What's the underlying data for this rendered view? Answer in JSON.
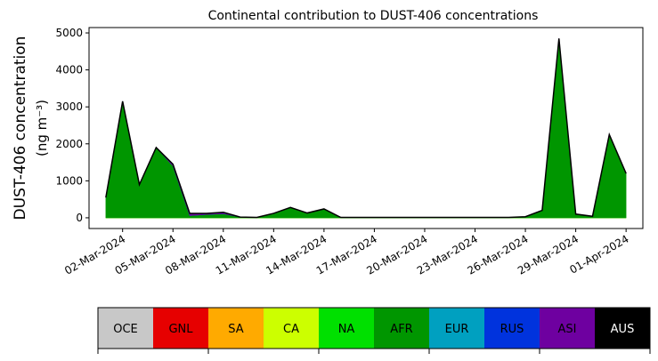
{
  "chart_data": {
    "type": "stacked-area",
    "title": "Continental contribution to DUST-406 concentrations",
    "ylabel": [
      "DUST-406 concentration",
      "(ng m⁻³)"
    ],
    "x": [
      "01-Mar-2024",
      "02-Mar-2024",
      "03-Mar-2024",
      "04-Mar-2024",
      "05-Mar-2024",
      "06-Mar-2024",
      "07-Mar-2024",
      "08-Mar-2024",
      "09-Mar-2024",
      "10-Mar-2024",
      "11-Mar-2024",
      "12-Mar-2024",
      "13-Mar-2024",
      "14-Mar-2024",
      "15-Mar-2024",
      "16-Mar-2024",
      "17-Mar-2024",
      "18-Mar-2024",
      "19-Mar-2024",
      "20-Mar-2024",
      "21-Mar-2024",
      "22-Mar-2024",
      "23-Mar-2024",
      "24-Mar-2024",
      "25-Mar-2024",
      "26-Mar-2024",
      "27-Mar-2024",
      "28-Mar-2024",
      "29-Mar-2024",
      "30-Mar-2024",
      "31-Mar-2024",
      "01-Apr-2024"
    ],
    "series": [
      {
        "name": "OCE",
        "color": "#c8c8c8",
        "values": [
          0,
          0,
          0,
          0,
          0,
          0,
          0,
          0,
          0,
          0,
          0,
          0,
          0,
          0,
          0,
          0,
          0,
          0,
          0,
          0,
          0,
          0,
          0,
          0,
          0,
          0,
          0,
          0,
          0,
          0,
          0,
          0
        ]
      },
      {
        "name": "GNL",
        "color": "#e60000",
        "values": [
          0,
          0,
          0,
          0,
          0,
          0,
          0,
          0,
          0,
          0,
          0,
          0,
          0,
          0,
          0,
          0,
          0,
          0,
          0,
          0,
          0,
          0,
          0,
          0,
          0,
          0,
          0,
          0,
          0,
          0,
          0,
          0
        ]
      },
      {
        "name": "SA",
        "color": "#ffaa00",
        "values": [
          0,
          0,
          0,
          0,
          0,
          0,
          0,
          0,
          0,
          0,
          0,
          0,
          0,
          0,
          0,
          0,
          0,
          0,
          0,
          0,
          0,
          0,
          0,
          0,
          0,
          0,
          0,
          0,
          0,
          0,
          0,
          0
        ]
      },
      {
        "name": "CA",
        "color": "#ccff00",
        "values": [
          0,
          0,
          0,
          0,
          0,
          0,
          0,
          0,
          0,
          0,
          0,
          0,
          0,
          0,
          0,
          0,
          0,
          0,
          0,
          0,
          0,
          0,
          0,
          0,
          0,
          0,
          0,
          0,
          0,
          0,
          0,
          0
        ]
      },
      {
        "name": "NA",
        "color": "#00e000",
        "values": [
          0,
          0,
          0,
          0,
          0,
          0,
          0,
          0,
          0,
          0,
          0,
          0,
          0,
          0,
          0,
          0,
          0,
          0,
          0,
          0,
          0,
          0,
          0,
          0,
          0,
          0,
          0,
          0,
          0,
          0,
          0,
          0
        ]
      },
      {
        "name": "AFR",
        "color": "#009600",
        "values": [
          550,
          3150,
          900,
          1900,
          1400,
          60,
          90,
          110,
          20,
          10,
          120,
          280,
          130,
          240,
          10,
          10,
          10,
          10,
          10,
          10,
          10,
          10,
          10,
          10,
          10,
          30,
          200,
          4850,
          100,
          40,
          2250,
          1200
        ]
      },
      {
        "name": "EUR",
        "color": "#00a0c0",
        "values": [
          0,
          0,
          0,
          0,
          0,
          0,
          0,
          0,
          0,
          0,
          0,
          0,
          0,
          0,
          0,
          0,
          0,
          0,
          0,
          0,
          0,
          0,
          0,
          0,
          0,
          0,
          0,
          0,
          0,
          0,
          0,
          0
        ]
      },
      {
        "name": "RUS",
        "color": "#0033dd",
        "values": [
          0,
          0,
          0,
          0,
          0,
          0,
          0,
          0,
          0,
          0,
          0,
          0,
          0,
          0,
          0,
          0,
          0,
          0,
          0,
          0,
          0,
          0,
          0,
          0,
          0,
          0,
          0,
          0,
          0,
          0,
          0,
          0
        ]
      },
      {
        "name": "ASI",
        "color": "#6e00a0",
        "values": [
          0,
          0,
          0,
          0,
          50,
          60,
          30,
          40,
          0,
          0,
          0,
          0,
          0,
          0,
          0,
          0,
          0,
          0,
          0,
          0,
          0,
          0,
          0,
          0,
          0,
          0,
          0,
          0,
          0,
          0,
          0,
          0
        ]
      },
      {
        "name": "AUS",
        "color": "#000000",
        "values": [
          0,
          0,
          0,
          0,
          0,
          0,
          0,
          0,
          0,
          0,
          0,
          0,
          0,
          0,
          0,
          0,
          0,
          0,
          0,
          0,
          0,
          0,
          0,
          0,
          0,
          0,
          0,
          0,
          0,
          0,
          0,
          0
        ]
      }
    ],
    "xlim": [
      "29-Feb-2024",
      "02-Apr-2024"
    ],
    "xticks": [
      "02-Mar-2024",
      "05-Mar-2024",
      "08-Mar-2024",
      "11-Mar-2024",
      "14-Mar-2024",
      "17-Mar-2024",
      "20-Mar-2024",
      "23-Mar-2024",
      "26-Mar-2024",
      "29-Mar-2024",
      "01-Apr-2024"
    ],
    "ylim": [
      -290,
      5145
    ],
    "yticks": [
      0,
      1000,
      2000,
      3000,
      4000,
      5000
    ],
    "legend": "bottom"
  }
}
